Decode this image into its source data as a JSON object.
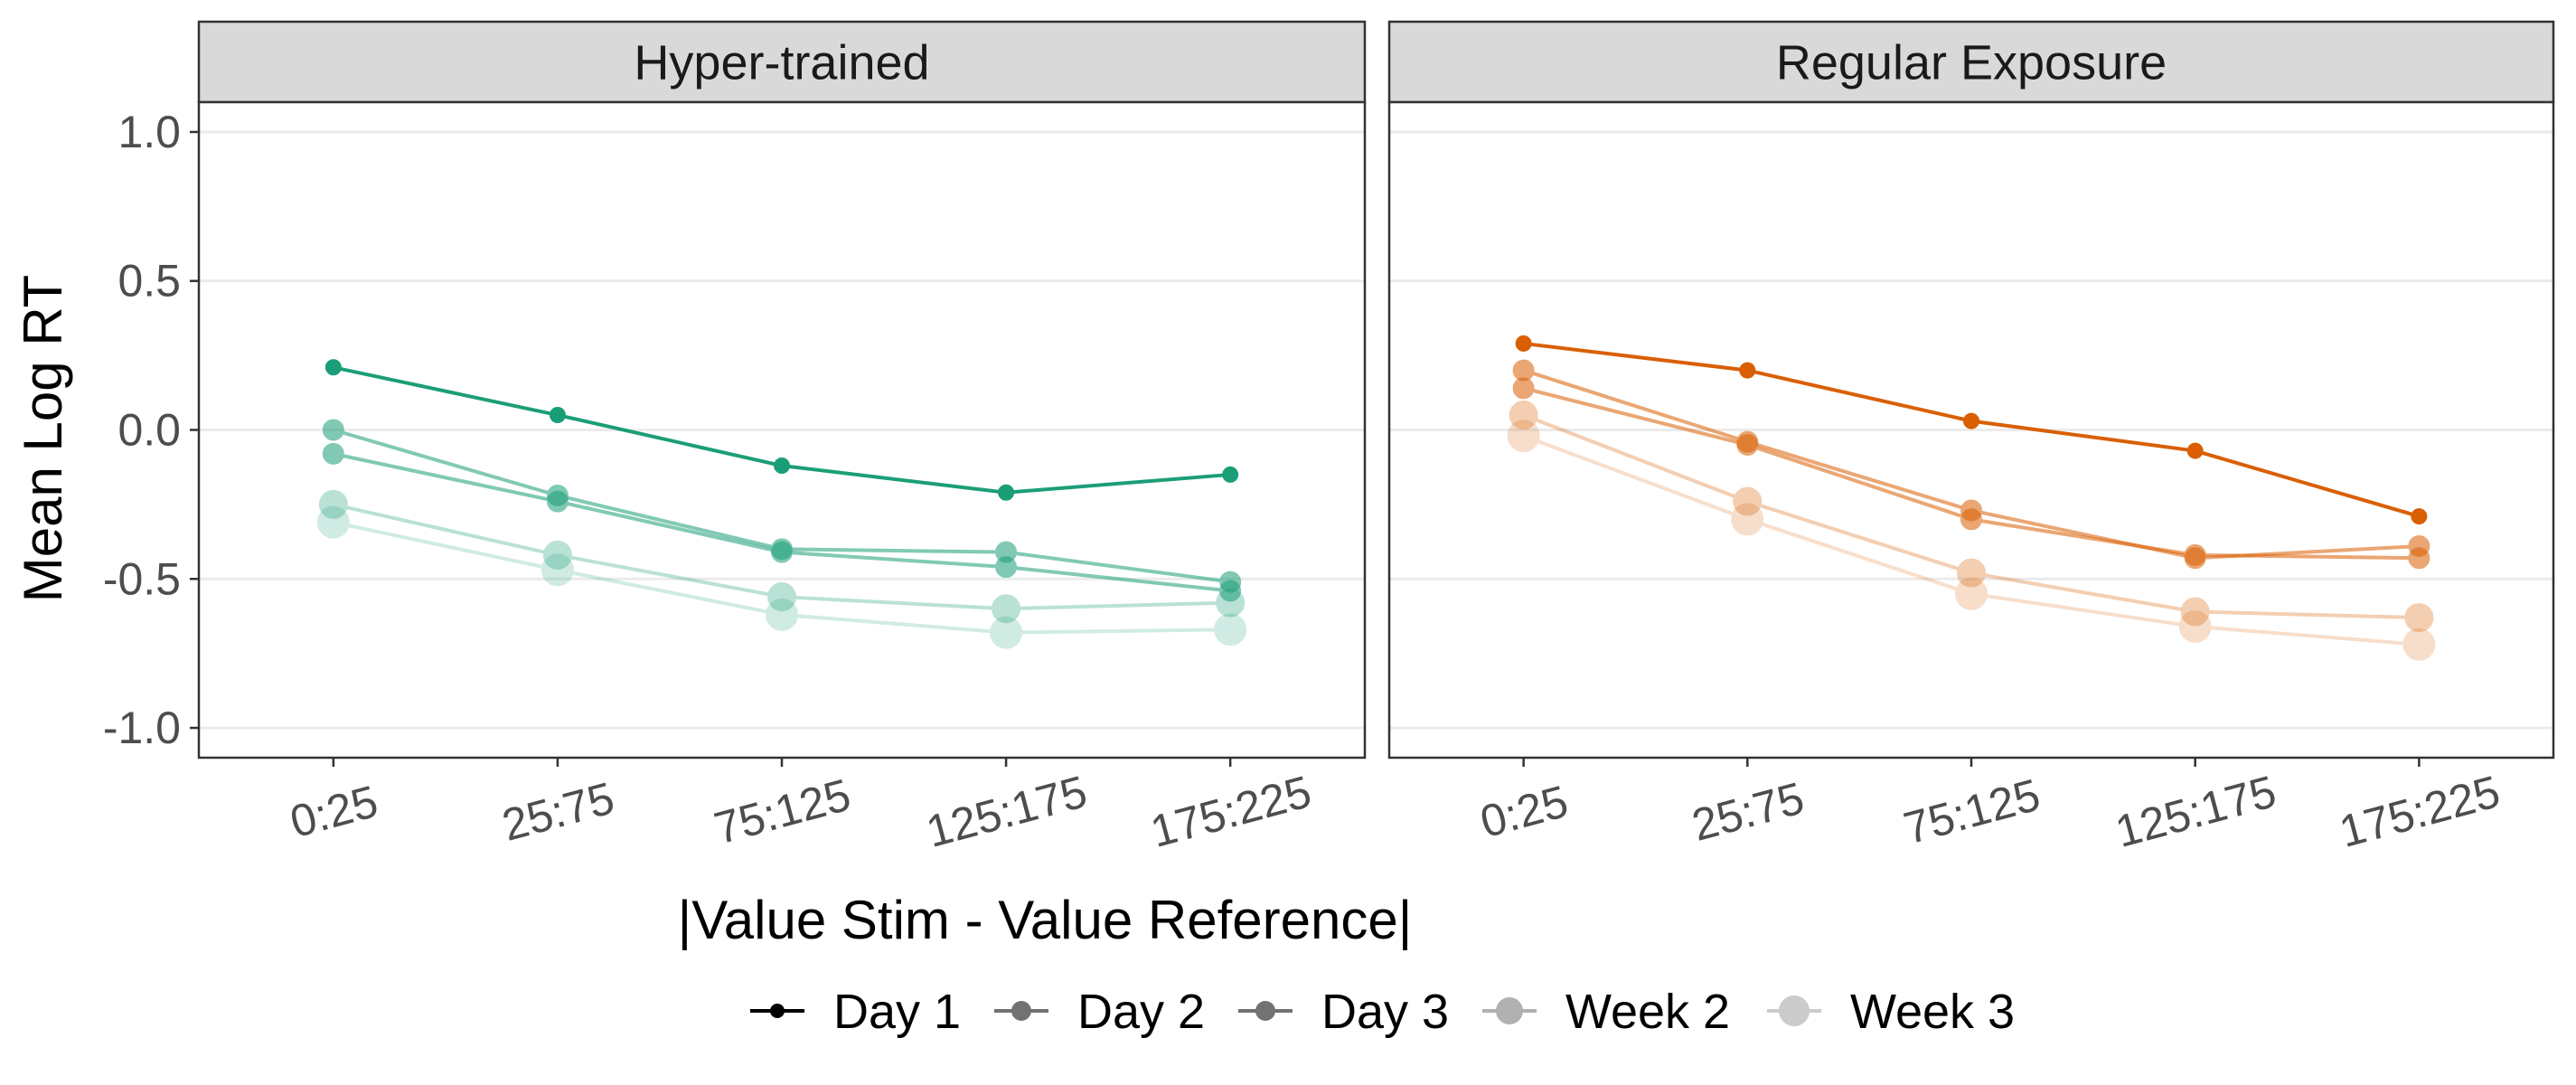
{
  "chart_data": {
    "type": "line",
    "ylabel": "Mean Log RT",
    "xlabel": "|Value Stim - Value Reference|",
    "categories": [
      "0:25",
      "25:75",
      "75:125",
      "125:175",
      "175:225"
    ],
    "ylim": [
      -1.1,
      1.1
    ],
    "yticks": [
      1.0,
      0.5,
      0.0,
      -0.5,
      -1.0
    ],
    "ytick_labels": [
      "1.0",
      "0.5",
      "0.0",
      "-0.5",
      "-1.0"
    ],
    "grid": "horizontal",
    "legend_position": "bottom",
    "legend": [
      "Day 1",
      "Day 2",
      "Day 3",
      "Week 2",
      "Week 3"
    ],
    "panels": [
      {
        "title": "Hyper-trained",
        "color": "#1b9e77",
        "series": [
          {
            "name": "Day 1",
            "values": [
              0.21,
              0.05,
              -0.12,
              -0.21,
              -0.15
            ]
          },
          {
            "name": "Day 2",
            "values": [
              0.0,
              -0.22,
              -0.4,
              -0.41,
              -0.51
            ]
          },
          {
            "name": "Day 3",
            "values": [
              -0.08,
              -0.24,
              -0.41,
              -0.46,
              -0.54
            ]
          },
          {
            "name": "Week 2",
            "values": [
              -0.25,
              -0.42,
              -0.56,
              -0.6,
              -0.58
            ]
          },
          {
            "name": "Week 3",
            "values": [
              -0.31,
              -0.47,
              -0.62,
              -0.68,
              -0.67
            ]
          }
        ]
      },
      {
        "title": "Regular Exposure",
        "color": "#d95f02",
        "series": [
          {
            "name": "Day 1",
            "values": [
              0.29,
              0.2,
              0.03,
              -0.07,
              -0.29
            ]
          },
          {
            "name": "Day 2",
            "values": [
              0.2,
              -0.04,
              -0.27,
              -0.43,
              -0.39
            ]
          },
          {
            "name": "Day 3",
            "values": [
              0.14,
              -0.05,
              -0.3,
              -0.42,
              -0.43
            ]
          },
          {
            "name": "Week 2",
            "values": [
              0.05,
              -0.24,
              -0.48,
              -0.61,
              -0.63
            ]
          },
          {
            "name": "Week 3",
            "values": [
              -0.02,
              -0.3,
              -0.55,
              -0.66,
              -0.72
            ]
          }
        ]
      }
    ]
  }
}
